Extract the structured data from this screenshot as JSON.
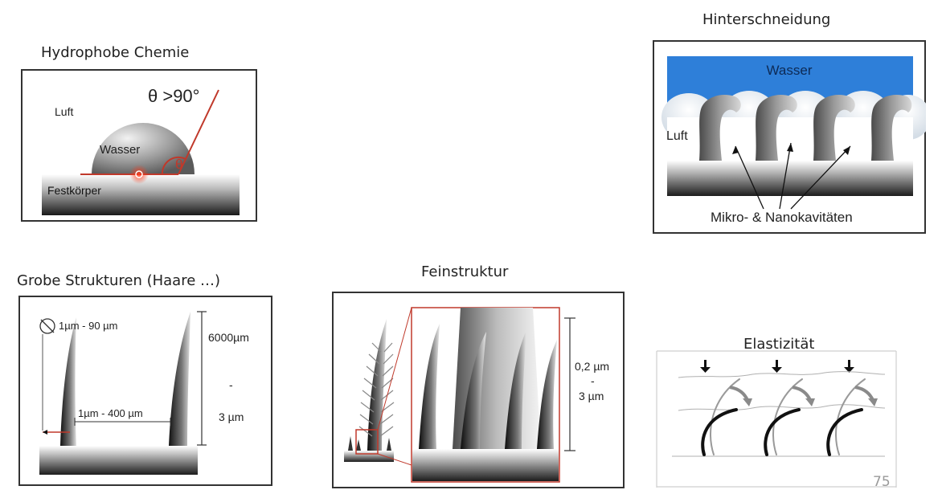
{
  "titles": {
    "hydrophobe": "Hydrophobe Chemie",
    "hinterschneidung": "Hinterschneidung",
    "grobe": "Grobe Strukturen (Haare …)",
    "feinstruktur": "Feinstruktur",
    "elastizitaet": "Elastizität"
  },
  "hydrophobe": {
    "luft": "Luft",
    "wasser": "Wasser",
    "festkoerper": "Festkörper",
    "angle_label": "θ >90°",
    "theta": "θ"
  },
  "hinterschneidung": {
    "wasser": "Wasser",
    "luft": "Luft",
    "kavitaeten": "Mikro- & Nanokavitäten"
  },
  "grobe": {
    "diameter": "1µm - 90 µm",
    "spacing": "1µm - 400 µm",
    "height_top": "6000µm",
    "height_dash": "-",
    "height_bottom": "3 µm"
  },
  "feinstruktur": {
    "size_top": "0,2 µm",
    "size_dash": "-",
    "size_bottom": "3 µm"
  },
  "slide_number": "75"
}
